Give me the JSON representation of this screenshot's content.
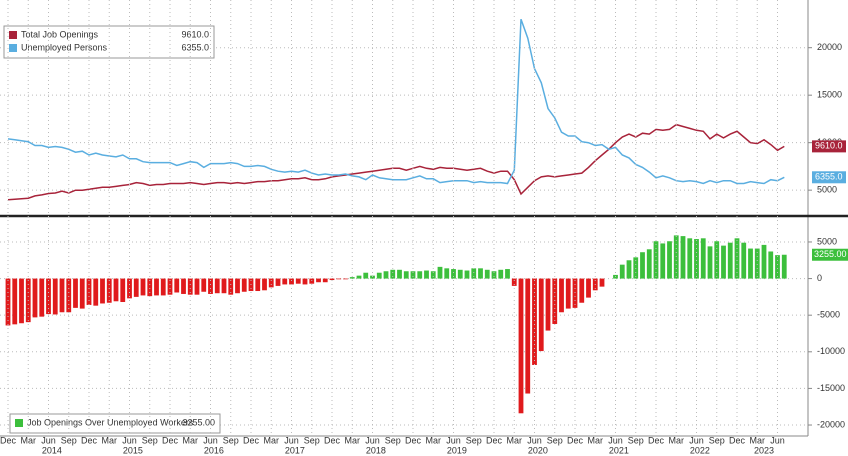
{
  "chart_data": [
    {
      "type": "line",
      "ylim": [
        2700,
        24600
      ],
      "yticks": [
        5000,
        10000,
        15000,
        20000
      ],
      "grid": true,
      "series": [
        {
          "name": "Total Job Openings",
          "color": "#a8233a",
          "legend_value": "9610.0",
          "values": [
            4000,
            4050,
            4100,
            4150,
            4400,
            4500,
            4650,
            4700,
            4900,
            4700,
            5000,
            5000,
            5100,
            5200,
            5300,
            5300,
            5400,
            5500,
            5600,
            5800,
            5700,
            5500,
            5600,
            5600,
            5700,
            5700,
            5700,
            5800,
            5700,
            5600,
            5700,
            5800,
            5800,
            5700,
            5800,
            5700,
            5800,
            5900,
            5900,
            6000,
            6000,
            6100,
            6200,
            6200,
            6300,
            6100,
            6100,
            6200,
            6400,
            6500,
            6600,
            6700,
            6800,
            6900,
            7000,
            7100,
            7200,
            7300,
            7300,
            7100,
            7300,
            7500,
            7300,
            7200,
            7400,
            7300,
            7300,
            7200,
            7100,
            7200,
            7300,
            7000,
            6800,
            7000,
            7000,
            6100,
            4600,
            5300,
            6000,
            6400,
            6500,
            6400,
            6500,
            6600,
            6700,
            6800,
            7400,
            8100,
            8700,
            9300,
            10000,
            10600,
            10900,
            10600,
            11000,
            10900,
            11400,
            11300,
            11400,
            11900,
            11700,
            11500,
            11300,
            11200,
            10400,
            10900,
            10500,
            10900,
            11200,
            10600,
            10000,
            9900,
            10300,
            9800,
            9200,
            9610
          ]
        },
        {
          "name": "Unemployed Persons",
          "color": "#5aaee0",
          "legend_value": "6355.0",
          "values": [
            10400,
            10300,
            10200,
            10100,
            9700,
            9700,
            9500,
            9600,
            9500,
            9300,
            9000,
            9100,
            8700,
            8900,
            8700,
            8600,
            8500,
            8700,
            8300,
            8300,
            8000,
            7900,
            7900,
            7900,
            7900,
            7600,
            7800,
            8000,
            7900,
            7400,
            7800,
            7800,
            7800,
            7900,
            7800,
            7500,
            7500,
            7600,
            7500,
            7200,
            7000,
            6900,
            7000,
            6900,
            7100,
            6800,
            6600,
            6700,
            6600,
            6600,
            6700,
            6500,
            6400,
            6100,
            6600,
            6300,
            6200,
            6100,
            6100,
            6100,
            6300,
            6500,
            6200,
            6200,
            5800,
            5900,
            6000,
            6000,
            6000,
            5800,
            5900,
            5800,
            5800,
            5800,
            5700,
            7100,
            23000,
            21000,
            17800,
            16300,
            13600,
            12600,
            11100,
            10700,
            10700,
            10100,
            10000,
            9700,
            9800,
            9300,
            9500,
            8700,
            8400,
            7700,
            7400,
            6900,
            6300,
            6500,
            6300,
            6000,
            5900,
            6000,
            5900,
            5700,
            6000,
            5800,
            6000,
            6000,
            5700,
            5700,
            5900,
            5800,
            5700,
            6100,
            6000,
            6355
          ]
        }
      ]
    },
    {
      "type": "bar",
      "ylim": [
        -21500,
        8000
      ],
      "yticks": [
        5000,
        0,
        -5000,
        -10000,
        -15000,
        -20000
      ],
      "grid": true,
      "categories": [
        "Dec",
        null,
        null,
        "Mar",
        null,
        null,
        "Jun",
        null,
        null,
        "Sep",
        null,
        null,
        "Dec",
        null,
        null,
        "Mar",
        null,
        null,
        "Jun",
        null,
        null,
        "Sep",
        null,
        null,
        "Dec",
        null,
        null,
        "Mar",
        null,
        null,
        "Jun",
        null,
        null,
        "Sep",
        null,
        null,
        "Dec",
        null,
        null,
        "Mar",
        null,
        null,
        "Jun",
        null,
        null,
        "Sep",
        null,
        null,
        "Dec",
        null,
        null,
        "Mar",
        null,
        null,
        "Jun",
        null,
        null,
        "Sep",
        null,
        null,
        "Dec",
        null,
        null,
        "Mar",
        null,
        null,
        "Jun",
        null,
        null,
        "Sep",
        null,
        null,
        "Dec",
        null,
        null,
        "Mar",
        null,
        null,
        "Jun",
        null,
        null,
        "Sep",
        null,
        null,
        "Dec",
        null,
        null,
        "Mar",
        null,
        null,
        "Jun",
        null,
        null,
        "Sep",
        null,
        null,
        "Dec",
        null,
        null,
        "Mar",
        null,
        null,
        "Jun",
        null,
        null,
        "Sep",
        null,
        null,
        "Dec",
        null,
        null,
        "Mar",
        null,
        null,
        "Jun",
        null
      ],
      "years": [
        "2014",
        "2015",
        "2016",
        "2017",
        "2018",
        "2019",
        "2020",
        "2021",
        "2022",
        "2023"
      ],
      "series": [
        {
          "name": "Job Openings Over Unemployed Workers",
          "color": "#3cbf3c",
          "negative_color": "#e01a1c",
          "legend_value": "3255.00",
          "values": [
            -6400,
            -6250,
            -6100,
            -5950,
            -5300,
            -5200,
            -4850,
            -4900,
            -4600,
            -4600,
            -4000,
            -4100,
            -3600,
            -3700,
            -3400,
            -3300,
            -3100,
            -3200,
            -2700,
            -2500,
            -2300,
            -2400,
            -2300,
            -2300,
            -2200,
            -1900,
            -2100,
            -2200,
            -2200,
            -1800,
            -2100,
            -2000,
            -2000,
            -2200,
            -2000,
            -1800,
            -1700,
            -1700,
            -1600,
            -1200,
            -1000,
            -800,
            -800,
            -700,
            -800,
            -700,
            -500,
            -500,
            -200,
            -100,
            -100,
            200,
            400,
            800,
            400,
            800,
            1000,
            1200,
            1200,
            1000,
            1000,
            1000,
            1100,
            1000,
            1600,
            1400,
            1300,
            1200,
            1100,
            1400,
            1400,
            1200,
            1000,
            1200,
            1300,
            -1000,
            -18400,
            -15700,
            -11800,
            -9900,
            -7100,
            -6200,
            -4600,
            -4100,
            -4000,
            -3300,
            -2600,
            -1600,
            -1100,
            0,
            500,
            1900,
            2500,
            2900,
            3600,
            4000,
            5100,
            4800,
            5100,
            5900,
            5800,
            5500,
            5400,
            5500,
            4400,
            5100,
            4500,
            4900,
            5500,
            4900,
            4100,
            4100,
            4600,
            3700,
            3200,
            3255
          ]
        }
      ]
    }
  ]
}
